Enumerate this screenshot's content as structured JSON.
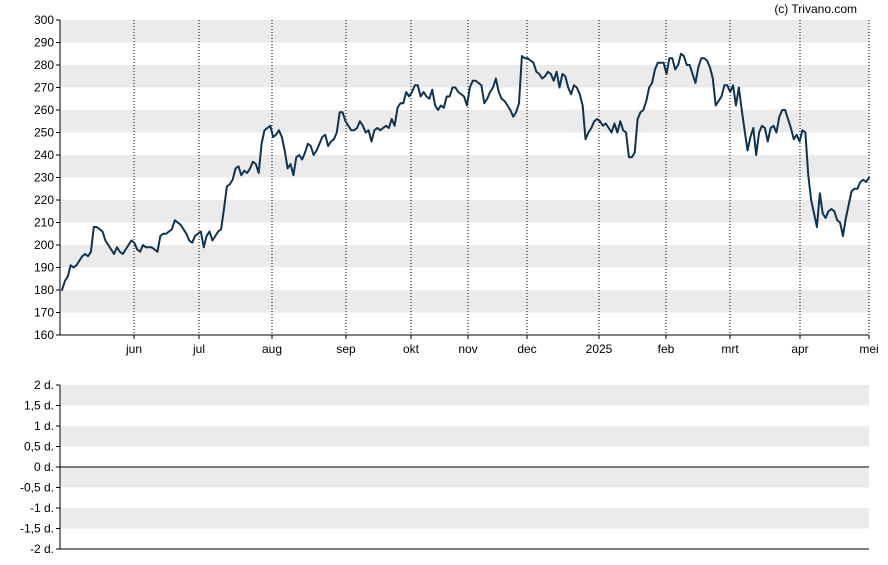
{
  "credit": "(c) Trivano.com",
  "colors": {
    "line": "#0d3350",
    "band": "#ebebeb",
    "axis": "#000000",
    "vgrid": "#000000"
  },
  "chart_data": [
    {
      "type": "line",
      "title": "",
      "xlabel": "",
      "ylabel": "",
      "ylim": [
        160,
        300
      ],
      "yticks": [
        160,
        170,
        180,
        190,
        200,
        210,
        220,
        230,
        240,
        250,
        260,
        270,
        280,
        290,
        300
      ],
      "x_labels": [
        "jun",
        "jul",
        "aug",
        "sep",
        "okt",
        "nov",
        "dec",
        "2025",
        "feb",
        "mrt",
        "apr",
        "mei"
      ],
      "grid": "alternating horizontal bands, dotted vertical lines at month ticks",
      "series": [
        {
          "values": [
            180,
            184,
            186,
            191,
            190,
            191,
            193,
            195,
            196,
            195,
            197,
            208,
            208,
            207,
            206,
            202,
            200,
            198,
            196,
            199,
            197,
            196,
            198,
            200,
            202,
            201,
            198,
            197,
            200,
            199,
            199,
            199,
            198,
            197,
            204,
            205,
            205,
            206,
            207,
            211,
            210,
            209,
            207,
            205,
            202,
            201,
            204,
            205,
            206,
            199,
            204,
            206,
            202,
            204,
            206,
            207,
            216,
            226,
            227,
            229,
            234,
            235,
            231,
            233,
            232,
            234,
            237,
            236,
            232,
            245,
            251,
            252,
            253,
            248,
            249,
            251,
            248,
            242,
            234,
            236,
            231,
            239,
            240,
            238,
            241,
            245,
            244,
            240,
            242,
            245,
            248,
            249,
            244,
            246,
            247,
            250,
            259,
            259,
            255,
            253,
            251,
            251,
            252,
            255,
            253,
            250,
            251,
            246,
            251,
            252,
            251,
            252,
            253,
            252,
            256,
            253,
            261,
            263,
            263,
            268,
            266,
            268,
            271,
            271,
            266,
            268,
            266,
            265,
            269,
            262,
            260,
            262,
            261,
            266,
            266,
            270,
            270,
            268,
            267,
            266,
            262,
            270,
            273,
            273,
            272,
            271,
            263,
            265,
            268,
            270,
            274,
            268,
            265,
            264,
            262,
            260,
            257,
            259,
            263,
            284,
            283,
            283,
            282,
            281,
            277,
            276,
            274,
            275,
            277,
            276,
            273,
            277,
            270,
            276,
            275,
            270,
            267,
            271,
            270,
            267,
            262,
            247,
            250,
            252,
            255,
            256,
            255,
            253,
            254,
            252,
            250,
            254,
            250,
            255,
            251,
            250,
            239,
            239,
            241,
            256,
            259,
            260,
            264,
            270,
            272,
            278,
            281,
            281,
            281,
            276,
            283,
            283,
            278,
            280,
            285,
            284,
            280,
            280,
            276,
            272,
            279,
            283,
            283,
            282,
            279,
            274,
            262,
            264,
            266,
            271,
            271,
            268,
            271,
            262,
            270,
            260,
            251,
            242,
            248,
            252,
            240,
            250,
            253,
            252,
            246,
            252,
            253,
            250,
            257,
            260,
            260,
            256,
            252,
            247,
            249,
            246,
            251,
            250,
            231,
            220,
            214,
            208,
            223,
            214,
            212,
            215,
            216,
            215,
            211,
            210,
            204,
            212,
            218,
            224,
            225,
            225,
            228,
            229,
            228,
            230
          ]
        }
      ]
    },
    {
      "type": "line",
      "title": "",
      "xlabel": "",
      "ylabel": "",
      "ylim": [
        -2,
        2
      ],
      "yticks": [
        "2 d.",
        "1,5 d.",
        "1 d.",
        "0,5 d.",
        "0 d.",
        "-0,5 d.",
        "-1 d.",
        "-1,5 d.",
        "-2 d."
      ],
      "grid": "alternating horizontal bands, reference line at 0 d.",
      "series": []
    }
  ]
}
